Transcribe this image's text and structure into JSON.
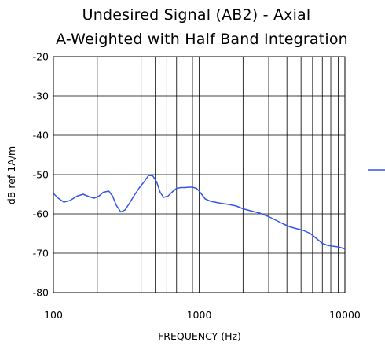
{
  "chart_data": {
    "type": "line",
    "title": "Undesired Signal (AB2) - Axial",
    "subtitle": "A-Weighted with Half Band Integration",
    "xlabel": "FREQUENCY (Hz)",
    "ylabel": "dB ref 1A/m",
    "xscale": "log",
    "xlim": [
      100,
      10000
    ],
    "ylim": [
      -80,
      -20
    ],
    "xticks": [
      100,
      1000,
      10000
    ],
    "xtick_labels": [
      "100",
      "1000",
      "10000"
    ],
    "yticks": [
      -20,
      -30,
      -40,
      -50,
      -60,
      -70,
      -80
    ],
    "ytick_labels": [
      "-20",
      "-30",
      "-40",
      "-50",
      "-60",
      "-70",
      "-80"
    ],
    "grid": true,
    "legend_position": "right",
    "series": [
      {
        "color": "#3355ee",
        "x": [
          100,
          108,
          118,
          130,
          145,
          160,
          175,
          190,
          205,
          220,
          240,
          255,
          270,
          290,
          310,
          330,
          360,
          390,
          420,
          450,
          480,
          510,
          540,
          570,
          610,
          650,
          700,
          750,
          800,
          850,
          900,
          960,
          1000,
          1100,
          1200,
          1400,
          1600,
          1800,
          2000,
          2300,
          2600,
          3000,
          3400,
          3800,
          4200,
          4700,
          5200,
          5800,
          6400,
          7000,
          7600,
          8200,
          9000,
          10000
        ],
        "y": [
          -54.8,
          -56.0,
          -57.0,
          -56.6,
          -55.5,
          -55.0,
          -55.6,
          -56.0,
          -55.5,
          -54.5,
          -54.2,
          -55.5,
          -57.8,
          -59.5,
          -59.0,
          -57.5,
          -55.2,
          -53.3,
          -51.8,
          -50.2,
          -50.3,
          -51.8,
          -54.5,
          -55.8,
          -55.5,
          -54.5,
          -53.5,
          -53.3,
          -53.3,
          -53.2,
          -53.2,
          -53.5,
          -54.2,
          -56.2,
          -56.8,
          -57.3,
          -57.6,
          -58.0,
          -58.7,
          -59.3,
          -59.8,
          -60.7,
          -61.7,
          -62.6,
          -63.3,
          -63.8,
          -64.2,
          -65.0,
          -66.3,
          -67.5,
          -68.0,
          -68.2,
          -68.4,
          -68.9
        ]
      }
    ]
  }
}
